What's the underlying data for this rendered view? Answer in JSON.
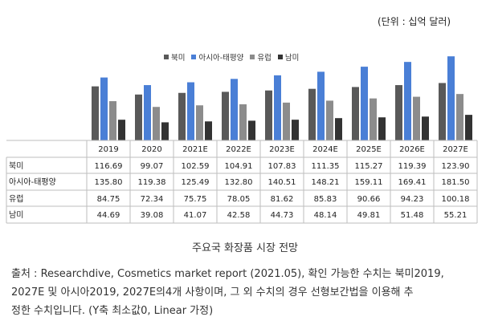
{
  "unit_label": "(단위 : 십억 달러)",
  "caption": "주요국 화장품 시장 전망",
  "source_lines": [
    "출처 : Researchdive, Cosmetics market report (2021.05), 확인 가능한 수치는 북미2019,",
    "2027E 및 아시아2019, 2027E의4개 사항이며, 그 외 수치의 경우 선형보간법을 이용해 추",
    "정한 수치입니다. (Y축 최소값0, Linear 가정)"
  ],
  "chart_data": {
    "type": "bar",
    "categories": [
      "2019",
      "2020",
      "2021E",
      "2022E",
      "2023E",
      "2024E",
      "2025E",
      "2026E",
      "2027E"
    ],
    "series": [
      {
        "name": "북미",
        "color": "#595959",
        "values": [
          116.69,
          99.07,
          102.59,
          104.91,
          107.83,
          111.35,
          115.27,
          119.39,
          123.9
        ]
      },
      {
        "name": "아시아-태평양",
        "color": "#4a7fd6",
        "values": [
          135.8,
          119.38,
          125.49,
          132.8,
          140.51,
          148.21,
          159.11,
          169.41,
          181.5
        ]
      },
      {
        "name": "유럽",
        "color": "#8c8c8c",
        "values": [
          84.75,
          72.34,
          75.75,
          78.05,
          81.62,
          85.83,
          90.66,
          94.23,
          100.18
        ]
      },
      {
        "name": "남미",
        "color": "#333333",
        "values": [
          44.69,
          39.08,
          41.07,
          42.58,
          44.73,
          48.14,
          49.81,
          51.48,
          55.21
        ]
      }
    ],
    "table_rows": [
      {
        "label": "북미",
        "values": [
          "116.69",
          "99.07",
          "102.59",
          "104.91",
          "107.83",
          "111.35",
          "115.27",
          "119.39",
          "123.90"
        ]
      },
      {
        "label": "아시아-태평양",
        "values": [
          "135.80",
          "119.38",
          "125.49",
          "132.80",
          "140.51",
          "148.21",
          "159.11",
          "169.41",
          "181.50"
        ]
      },
      {
        "label": "유럽",
        "values": [
          "84.75",
          "72.34",
          "75.75",
          "78.05",
          "81.62",
          "85.83",
          "90.66",
          "94.23",
          "100.18"
        ]
      },
      {
        "label": "남미",
        "values": [
          "44.69",
          "39.08",
          "41.07",
          "42.58",
          "44.73",
          "48.14",
          "49.81",
          "51.48",
          "55.21"
        ]
      }
    ],
    "ylim": [
      0,
      200
    ],
    "legend_position": "top"
  }
}
